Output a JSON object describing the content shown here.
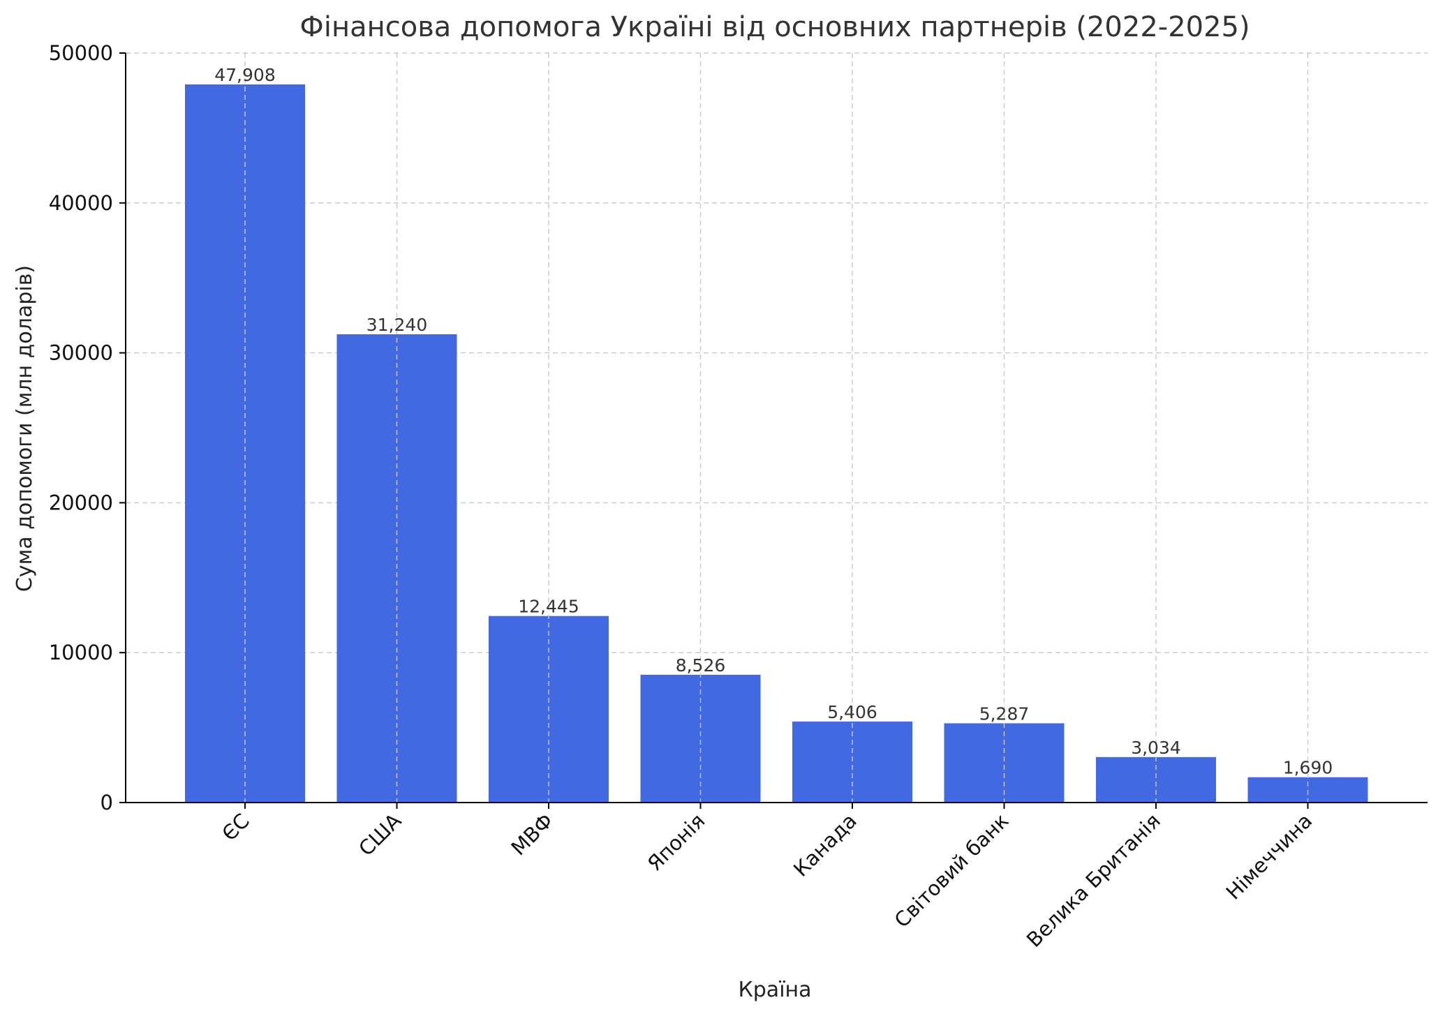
{
  "chart_data": {
    "type": "bar",
    "title": "Фінансова допомога Україні від основних партнерів (2022-2025)",
    "xlabel": "Країна",
    "ylabel": "Сума допомоги (млн доларів)",
    "categories": [
      "ЄС",
      "США",
      "МВФ",
      "Японія",
      "Канада",
      "Світовий банк",
      "Велика Британія",
      "Німеччина"
    ],
    "values": [
      47908,
      31240,
      12445,
      8526,
      5406,
      5287,
      3034,
      1690
    ],
    "value_labels": [
      "47,908",
      "31,240",
      "12,445",
      "8,526",
      "5,406",
      "5,287",
      "3,034",
      "1,690"
    ],
    "ylim": [
      0,
      50000
    ],
    "yticks": [
      0,
      10000,
      20000,
      30000,
      40000,
      50000
    ],
    "ytick_labels": [
      "0",
      "10000",
      "20000",
      "30000",
      "40000",
      "50000"
    ],
    "grid": true,
    "colors": {
      "bar": "#4169e1"
    }
  }
}
